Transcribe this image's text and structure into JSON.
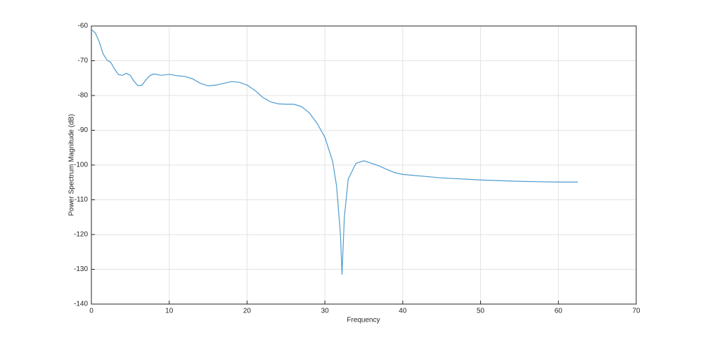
{
  "chart_data": {
    "type": "line",
    "x_label": "Frequency",
    "y_label": "Power Spectrum Magnitude (dB)",
    "xlim": [
      0,
      70
    ],
    "ylim": [
      -140,
      -60
    ],
    "xticks": [
      0,
      10,
      20,
      30,
      40,
      50,
      60,
      70
    ],
    "yticks": [
      -60,
      -70,
      -80,
      -90,
      -100,
      -110,
      -120,
      -130,
      -140
    ],
    "grid": true,
    "series": [
      {
        "color": "#4d9bd0",
        "x": [
          0,
          0.5,
          1,
          1.5,
          2,
          2.5,
          3,
          3.5,
          4,
          4.5,
          5,
          5.5,
          6,
          6.5,
          7,
          7.5,
          8,
          9,
          10,
          11,
          12,
          13,
          14,
          15,
          16,
          17,
          18,
          19,
          20,
          21,
          22,
          23,
          24,
          25,
          26,
          27,
          28,
          29,
          30,
          31,
          31.5,
          32,
          32.2,
          32.5,
          33,
          34,
          35,
          36,
          37,
          38,
          39,
          40,
          45,
          50,
          55,
          60,
          62.5
        ],
        "values": [
          -61,
          -62,
          -64.5,
          -68,
          -69.8,
          -70.5,
          -72.5,
          -74,
          -74.2,
          -73.6,
          -74.2,
          -76,
          -77.2,
          -77,
          -75.5,
          -74.3,
          -73.8,
          -74.2,
          -73.9,
          -74.3,
          -74.5,
          -75.2,
          -76.5,
          -77.2,
          -77,
          -76.5,
          -76,
          -76.2,
          -77,
          -78.5,
          -80.5,
          -81.8,
          -82.4,
          -82.5,
          -82.5,
          -83.2,
          -85,
          -88,
          -92,
          -99,
          -106,
          -120,
          -131.5,
          -115,
          -104,
          -99.5,
          -98.8,
          -99.5,
          -100.3,
          -101.3,
          -102.2,
          -102.7,
          -103.7,
          -104.3,
          -104.7,
          -104.9,
          -104.9
        ]
      }
    ]
  }
}
